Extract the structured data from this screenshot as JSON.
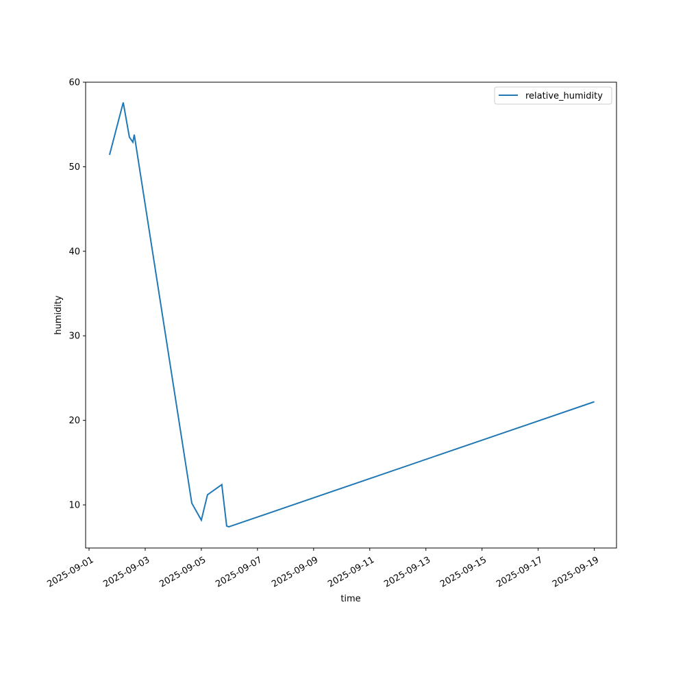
{
  "chart_data": {
    "type": "line",
    "title": "",
    "xlabel": "time",
    "ylabel": "humidity",
    "xlim": [
      "2025-09-00T21:00",
      "2025-09-19T21:00"
    ],
    "ylim": [
      4.9,
      60
    ],
    "xticks": [
      "2025-09-01",
      "2025-09-03",
      "2025-09-05",
      "2025-09-07",
      "2025-09-09",
      "2025-09-11",
      "2025-09-13",
      "2025-09-15",
      "2025-09-17",
      "2025-09-19"
    ],
    "yticks": [
      10,
      20,
      30,
      40,
      50,
      60
    ],
    "grid": false,
    "legend": "top-right",
    "series": [
      {
        "name": "relative_humidity",
        "color": "#1f77b4",
        "x": [
          "2025-09-01T17:30",
          "2025-09-02T05:15",
          "2025-09-02T10:30",
          "2025-09-02T13:30",
          "2025-09-02T14:40",
          "2025-09-04T15:50",
          "2025-09-05T00:00",
          "2025-09-05T05:15",
          "2025-09-05T17:30",
          "2025-09-05T21:40",
          "2025-09-05T23:30",
          "2025-09-19T00:00"
        ],
        "y": [
          51.4,
          57.6,
          53.5,
          52.9,
          53.8,
          10.2,
          8.2,
          11.2,
          12.4,
          7.5,
          7.4,
          22.2
        ]
      }
    ]
  }
}
